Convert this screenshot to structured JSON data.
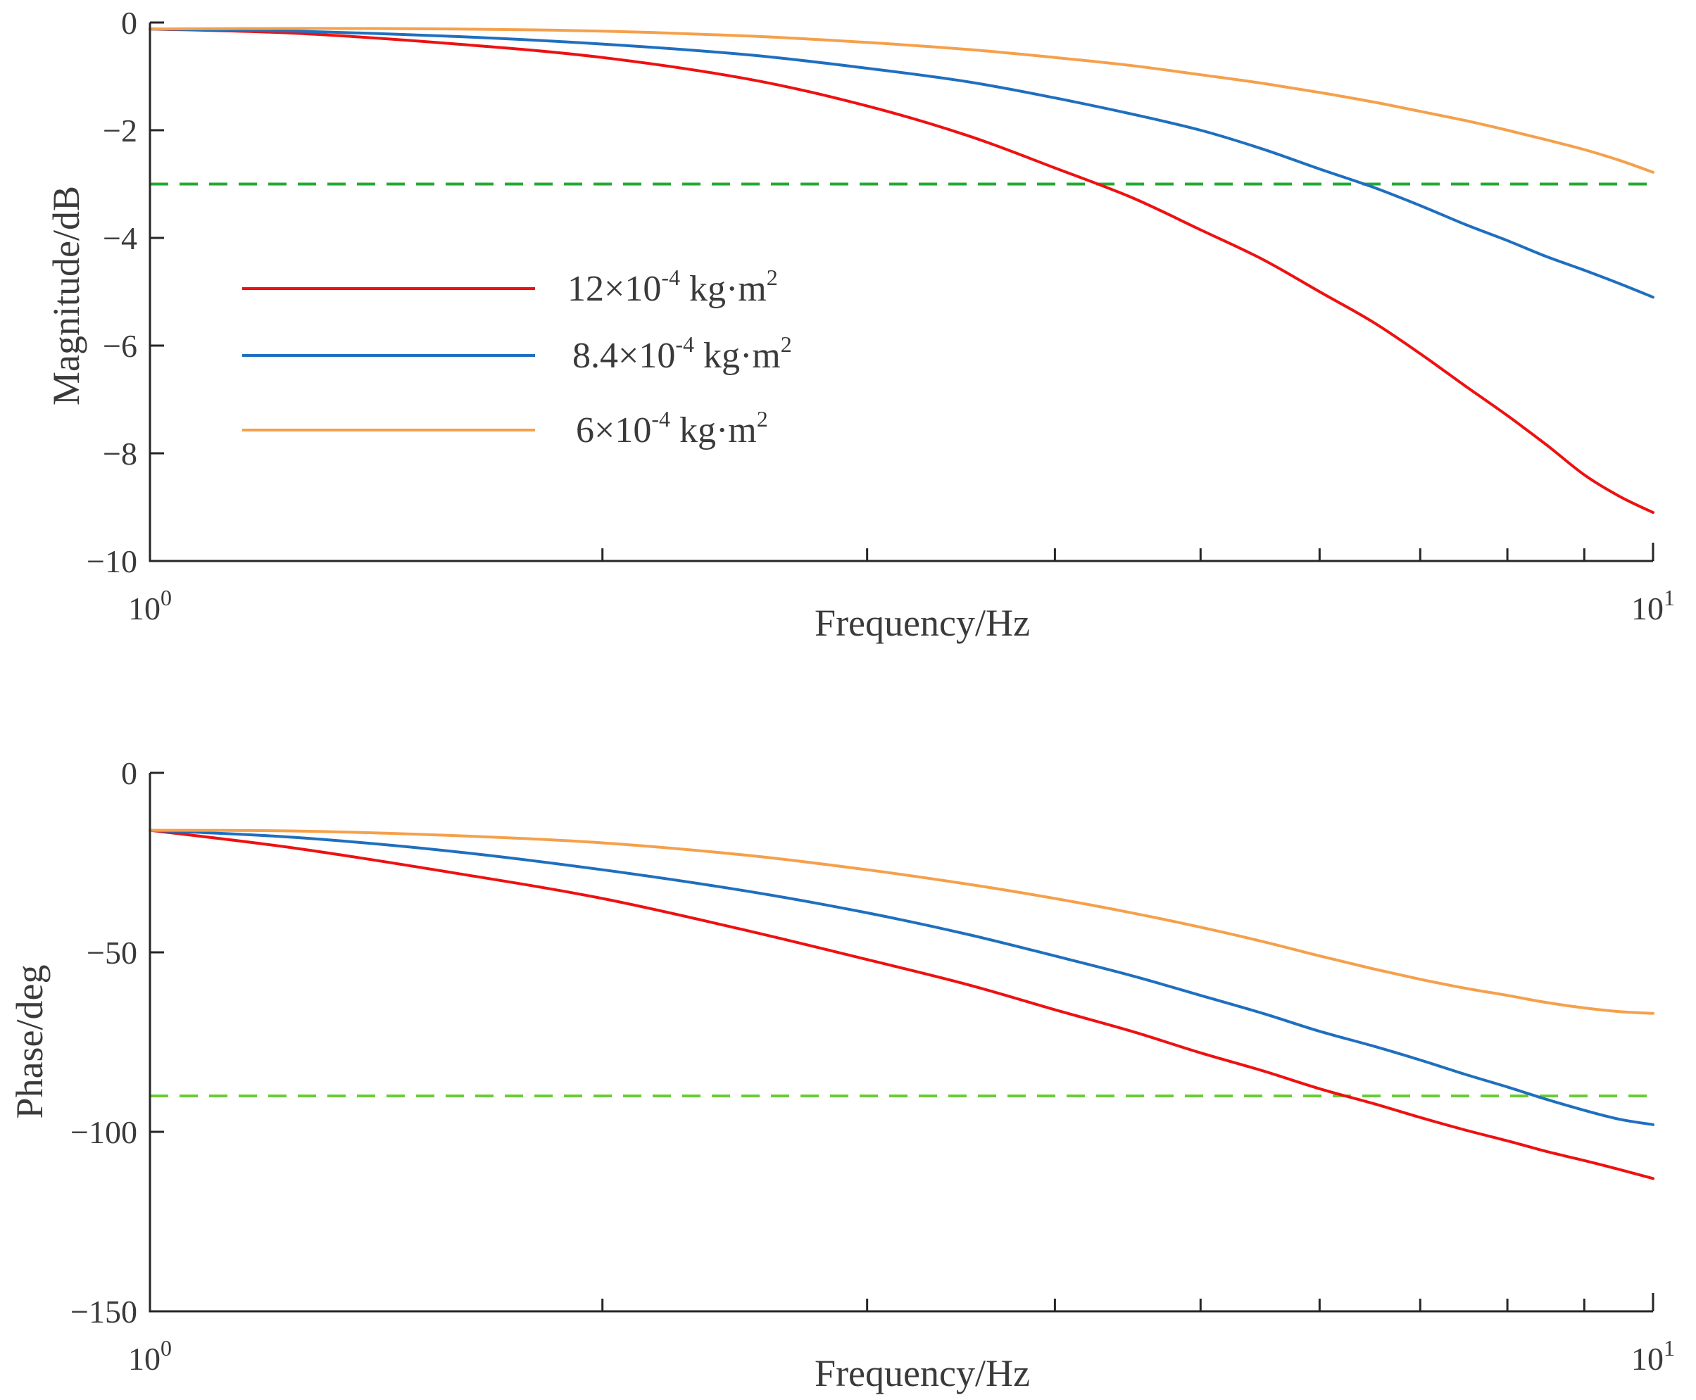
{
  "chart_data": [
    {
      "type": "line",
      "id": "magnitude",
      "xscale": "log",
      "xlim": [
        1,
        10
      ],
      "ylim": [
        -10,
        0
      ],
      "xlabel": "Frequency/Hz",
      "ylabel": "Magnitude/dB",
      "yticks": [
        0,
        -2,
        -4,
        -6,
        -8,
        -10
      ],
      "ytick_labels": [
        "0",
        "−2",
        "−4",
        "−6",
        "−8",
        "−10"
      ],
      "xtick_labels": [
        {
          "base": "10",
          "exp": "0"
        },
        {
          "base": "10",
          "exp": "1"
        }
      ],
      "reference_line": {
        "y": -3,
        "color": "#22aa33",
        "style": "dashed"
      },
      "series": [
        {
          "name": "12×10⁻⁴ kg·m²",
          "color": "#ee1111",
          "x": [
            1,
            1.25,
            1.6,
            2,
            2.5,
            3,
            3.5,
            4,
            4.5,
            5,
            5.5,
            6,
            6.5,
            7,
            7.5,
            8,
            8.5,
            9,
            9.5,
            10
          ],
          "y": [
            -0.12,
            -0.2,
            -0.4,
            -0.65,
            -1.05,
            -1.55,
            -2.1,
            -2.7,
            -3.25,
            -3.85,
            -4.4,
            -5.0,
            -5.55,
            -6.15,
            -6.75,
            -7.3,
            -7.85,
            -8.4,
            -8.8,
            -9.1
          ]
        },
        {
          "name": "8.4×10⁻⁴ kg·m²",
          "color": "#1f6fbf",
          "x": [
            1,
            1.25,
            1.6,
            2,
            2.5,
            3,
            3.5,
            4,
            4.5,
            5,
            5.5,
            6,
            6.5,
            7,
            7.5,
            8,
            8.5,
            9,
            9.5,
            10
          ],
          "y": [
            -0.12,
            -0.16,
            -0.26,
            -0.4,
            -0.6,
            -0.85,
            -1.1,
            -1.4,
            -1.7,
            -2.0,
            -2.35,
            -2.72,
            -3.05,
            -3.4,
            -3.75,
            -4.05,
            -4.35,
            -4.6,
            -4.85,
            -5.1
          ]
        },
        {
          "name": "6×10⁻⁴ kg·m²",
          "color": "#f5a04b",
          "x": [
            1,
            1.25,
            1.6,
            2,
            2.5,
            3,
            3.5,
            4,
            4.5,
            5,
            5.5,
            6,
            6.5,
            7,
            7.5,
            8,
            8.5,
            9,
            9.5,
            10
          ],
          "y": [
            -0.12,
            -0.11,
            -0.12,
            -0.16,
            -0.25,
            -0.37,
            -0.5,
            -0.65,
            -0.8,
            -0.97,
            -1.13,
            -1.3,
            -1.47,
            -1.65,
            -1.82,
            -2.0,
            -2.18,
            -2.36,
            -2.56,
            -2.78
          ]
        }
      ],
      "legend": {
        "position": "upper-left"
      }
    },
    {
      "type": "line",
      "id": "phase",
      "xscale": "log",
      "xlim": [
        1,
        10
      ],
      "ylim": [
        -150,
        0
      ],
      "xlabel": "Frequency/Hz",
      "ylabel": "Phase/deg",
      "yticks": [
        0,
        -50,
        -100,
        -150
      ],
      "ytick_labels": [
        "0",
        "−50",
        "−100",
        "−150"
      ],
      "xtick_labels": [
        {
          "base": "10",
          "exp": "0"
        },
        {
          "base": "10",
          "exp": "1"
        }
      ],
      "reference_line": {
        "y": -90,
        "color": "#66cc33",
        "style": "dashed"
      },
      "series": [
        {
          "name": "12×10⁻⁴ kg·m²",
          "color": "#ee1111",
          "x": [
            1,
            1.25,
            1.6,
            2,
            2.5,
            3,
            3.5,
            4,
            4.5,
            5,
            5.5,
            6,
            6.5,
            7,
            7.5,
            8,
            8.5,
            9,
            9.5,
            10
          ],
          "y": [
            -16,
            -21,
            -28,
            -35,
            -44,
            -52,
            -59,
            -66,
            -72,
            -78,
            -83,
            -88,
            -92,
            -96,
            -99.5,
            -102.5,
            -105.5,
            -108,
            -110.5,
            -113
          ]
        },
        {
          "name": "8.4×10⁻⁴ kg·m²",
          "color": "#1f6fbf",
          "x": [
            1,
            1.25,
            1.6,
            2,
            2.5,
            3,
            3.5,
            4,
            4.5,
            5,
            5.5,
            6,
            6.5,
            7,
            7.5,
            8,
            8.5,
            9,
            9.5,
            10
          ],
          "y": [
            -16,
            -18,
            -22,
            -27,
            -33,
            -39,
            -45,
            -51,
            -56.5,
            -62,
            -67,
            -72,
            -76,
            -80,
            -84,
            -87.5,
            -91,
            -94,
            -96.5,
            -98
          ]
        },
        {
          "name": "6×10⁻⁴ kg·m²",
          "color": "#f5a04b",
          "x": [
            1,
            1.25,
            1.6,
            2,
            2.5,
            3,
            3.5,
            4,
            4.5,
            5,
            5.5,
            6,
            6.5,
            7,
            7.5,
            8,
            8.5,
            9,
            9.5,
            10
          ],
          "y": [
            -16,
            -16.2,
            -17.5,
            -19.5,
            -23,
            -27,
            -31,
            -35,
            -39,
            -43,
            -47,
            -51,
            -54.5,
            -57.5,
            -60,
            -62,
            -64,
            -65.5,
            -66.5,
            -67
          ]
        }
      ]
    }
  ],
  "legend_text": [
    {
      "mantissa": "12×10",
      "exp": "-4",
      "unit": " kg·m",
      "unit_exp": "2"
    },
    {
      "mantissa": "8.4×10",
      "exp": "-4",
      "unit": " kg·m",
      "unit_exp": "2"
    },
    {
      "mantissa": "6×10",
      "exp": "-4",
      "unit": " kg·m",
      "unit_exp": "2"
    }
  ]
}
